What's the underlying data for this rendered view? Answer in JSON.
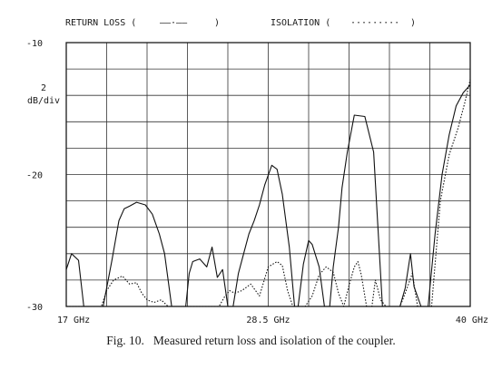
{
  "chart_data": {
    "type": "line",
    "title": "",
    "legend": {
      "placement": "top",
      "entries": [
        {
          "label": "RETURN LOSS (",
          "sample": "——·——",
          "close": ")"
        },
        {
          "label": "ISOLATION (",
          "sample": "·········",
          "close": ")"
        }
      ]
    },
    "scale": {
      "per_div_value": "2",
      "per_div_unit": "dB/div"
    },
    "ylim": [
      -30,
      -10
    ],
    "yticks": [
      {
        "value": -10,
        "label": "-10"
      },
      {
        "value": -20,
        "label": "-20"
      },
      {
        "value": -30,
        "label": "-30"
      }
    ],
    "xlim": [
      17,
      40
    ],
    "xticks": [
      {
        "value": 17,
        "label": "17 GHz"
      },
      {
        "value": 28.5,
        "label": "28.5 GHz"
      },
      {
        "value": 40,
        "label": "40 GHz"
      }
    ],
    "grid": true,
    "grid_divisions": {
      "x": 10,
      "y": 10
    },
    "series": [
      {
        "style": "solid",
        "x": [
          17.0,
          17.3,
          17.7,
          18.0,
          18.3,
          18.6,
          19.1,
          19.6,
          20.0,
          20.3,
          20.6,
          21.0,
          21.5,
          21.9,
          22.3,
          22.6,
          23.0,
          23.5,
          23.8,
          24.0,
          24.2,
          24.6,
          25.0,
          25.3,
          25.6,
          25.9,
          26.2,
          26.5,
          26.8,
          27.1,
          27.4,
          27.7,
          28.0,
          28.3,
          28.7,
          29.0,
          29.3,
          29.7,
          30.0,
          30.2,
          30.5,
          30.8,
          31.0,
          31.4,
          31.7,
          32.0,
          32.2,
          32.5,
          32.7,
          33.0,
          33.4,
          34.0,
          34.5,
          35.0,
          35.3,
          35.7,
          36.0,
          36.3,
          36.6,
          36.8,
          37.2,
          37.6,
          38.0,
          38.4,
          38.8,
          39.2,
          39.6,
          40.0
        ],
        "y": [
          -27.2,
          -26.0,
          -26.5,
          -30.0,
          -30.0,
          -30.0,
          -30.0,
          -26.5,
          -23.5,
          -22.6,
          -22.4,
          -22.1,
          -22.3,
          -23.0,
          -24.5,
          -26.0,
          -30.0,
          -30.0,
          -30.0,
          -27.5,
          -26.6,
          -26.4,
          -27.0,
          -25.5,
          -27.8,
          -27.2,
          -30.0,
          -30.0,
          -27.5,
          -26.0,
          -24.5,
          -23.5,
          -22.3,
          -20.8,
          -19.3,
          -19.6,
          -21.5,
          -25.5,
          -30.0,
          -30.0,
          -26.8,
          -25.0,
          -25.3,
          -27.0,
          -30.0,
          -30.0,
          -27.0,
          -24.0,
          -21.0,
          -18.3,
          -15.5,
          -15.6,
          -18.3,
          -30.0,
          -30.0,
          -30.0,
          -30.0,
          -28.6,
          -26.0,
          -28.5,
          -30.0,
          -30.0,
          -24.5,
          -20.0,
          -17.0,
          -14.8,
          -13.8,
          -13.2
        ]
      },
      {
        "style": "dotted",
        "x": [
          17.0,
          17.8,
          18.5,
          19.0,
          19.3,
          19.7,
          20.2,
          20.6,
          21.0,
          21.3,
          21.6,
          22.0,
          22.4,
          22.8,
          23.2,
          23.6,
          24.0,
          24.2,
          24.5,
          24.9,
          25.3,
          25.7,
          26.0,
          26.3,
          26.6,
          27.0,
          27.5,
          28.0,
          28.5,
          29.0,
          29.3,
          29.6,
          29.9,
          30.2,
          30.6,
          31.0,
          31.4,
          31.8,
          32.2,
          32.5,
          32.8,
          33.1,
          33.4,
          33.6,
          33.8,
          34.1,
          34.4,
          34.6,
          34.9,
          35.2,
          35.5,
          35.8,
          36.0,
          36.3,
          36.7,
          37.0,
          37.4,
          37.8,
          38.3,
          38.8,
          39.3,
          39.7,
          40.0
        ],
        "y": [
          -30.0,
          -30.0,
          -30.0,
          -30.0,
          -28.8,
          -28.0,
          -27.7,
          -28.3,
          -28.2,
          -29.0,
          -29.5,
          -29.7,
          -29.5,
          -30.0,
          -30.0,
          -30.0,
          -30.0,
          -30.0,
          -30.0,
          -30.0,
          -30.0,
          -30.0,
          -29.3,
          -28.8,
          -29.0,
          -28.8,
          -28.3,
          -29.2,
          -27.0,
          -26.6,
          -26.9,
          -28.8,
          -30.0,
          -30.0,
          -30.0,
          -29.2,
          -27.6,
          -27.0,
          -27.4,
          -29.0,
          -30.0,
          -28.4,
          -27.0,
          -26.6,
          -27.6,
          -30.0,
          -30.0,
          -28.0,
          -29.5,
          -30.0,
          -30.0,
          -30.0,
          -30.0,
          -29.0,
          -27.5,
          -30.0,
          -30.0,
          -30.0,
          -22.0,
          -18.5,
          -16.5,
          -14.5,
          -12.8
        ]
      }
    ]
  },
  "caption": {
    "figure_number": "Fig. 10.",
    "text": "Measured return loss and isolation of the coupler."
  }
}
